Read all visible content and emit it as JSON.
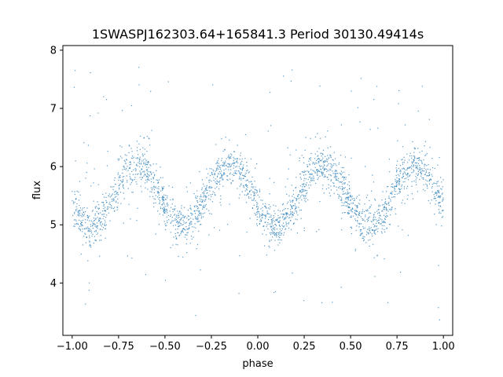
{
  "chart_data": {
    "type": "scatter",
    "title": "1SWASPJ162303.64+165841.3 Period 30130.49414s",
    "xlabel": "phase",
    "ylabel": "flux",
    "xlim": [
      -1.05,
      1.05
    ],
    "ylim": [
      3.1,
      8.08
    ],
    "xticks": [
      -1.0,
      -0.75,
      -0.5,
      -0.25,
      0.0,
      0.25,
      0.5,
      0.75,
      1.0
    ],
    "xtick_labels": [
      "−1.00",
      "−0.75",
      "−0.50",
      "−0.25",
      "0.00",
      "0.25",
      "0.50",
      "0.75",
      "1.00"
    ],
    "yticks": [
      4,
      5,
      6,
      7,
      8
    ],
    "ytick_labels": [
      "4",
      "5",
      "6",
      "7",
      "8"
    ],
    "grid": false,
    "point_color": "#1f77b4",
    "model": {
      "phase_range": [
        -1.0,
        1.0
      ],
      "mean_flux": 5.5,
      "amplitude": 0.53,
      "cycles_per_unit_phase": 2,
      "max_phases": [
        -0.65,
        -0.15,
        0.35,
        0.85
      ],
      "min_phases": [
        -0.9,
        -0.4,
        0.1,
        0.6
      ],
      "scatter_sigma": 0.17,
      "outlier_range": [
        3.3,
        7.8
      ]
    }
  }
}
